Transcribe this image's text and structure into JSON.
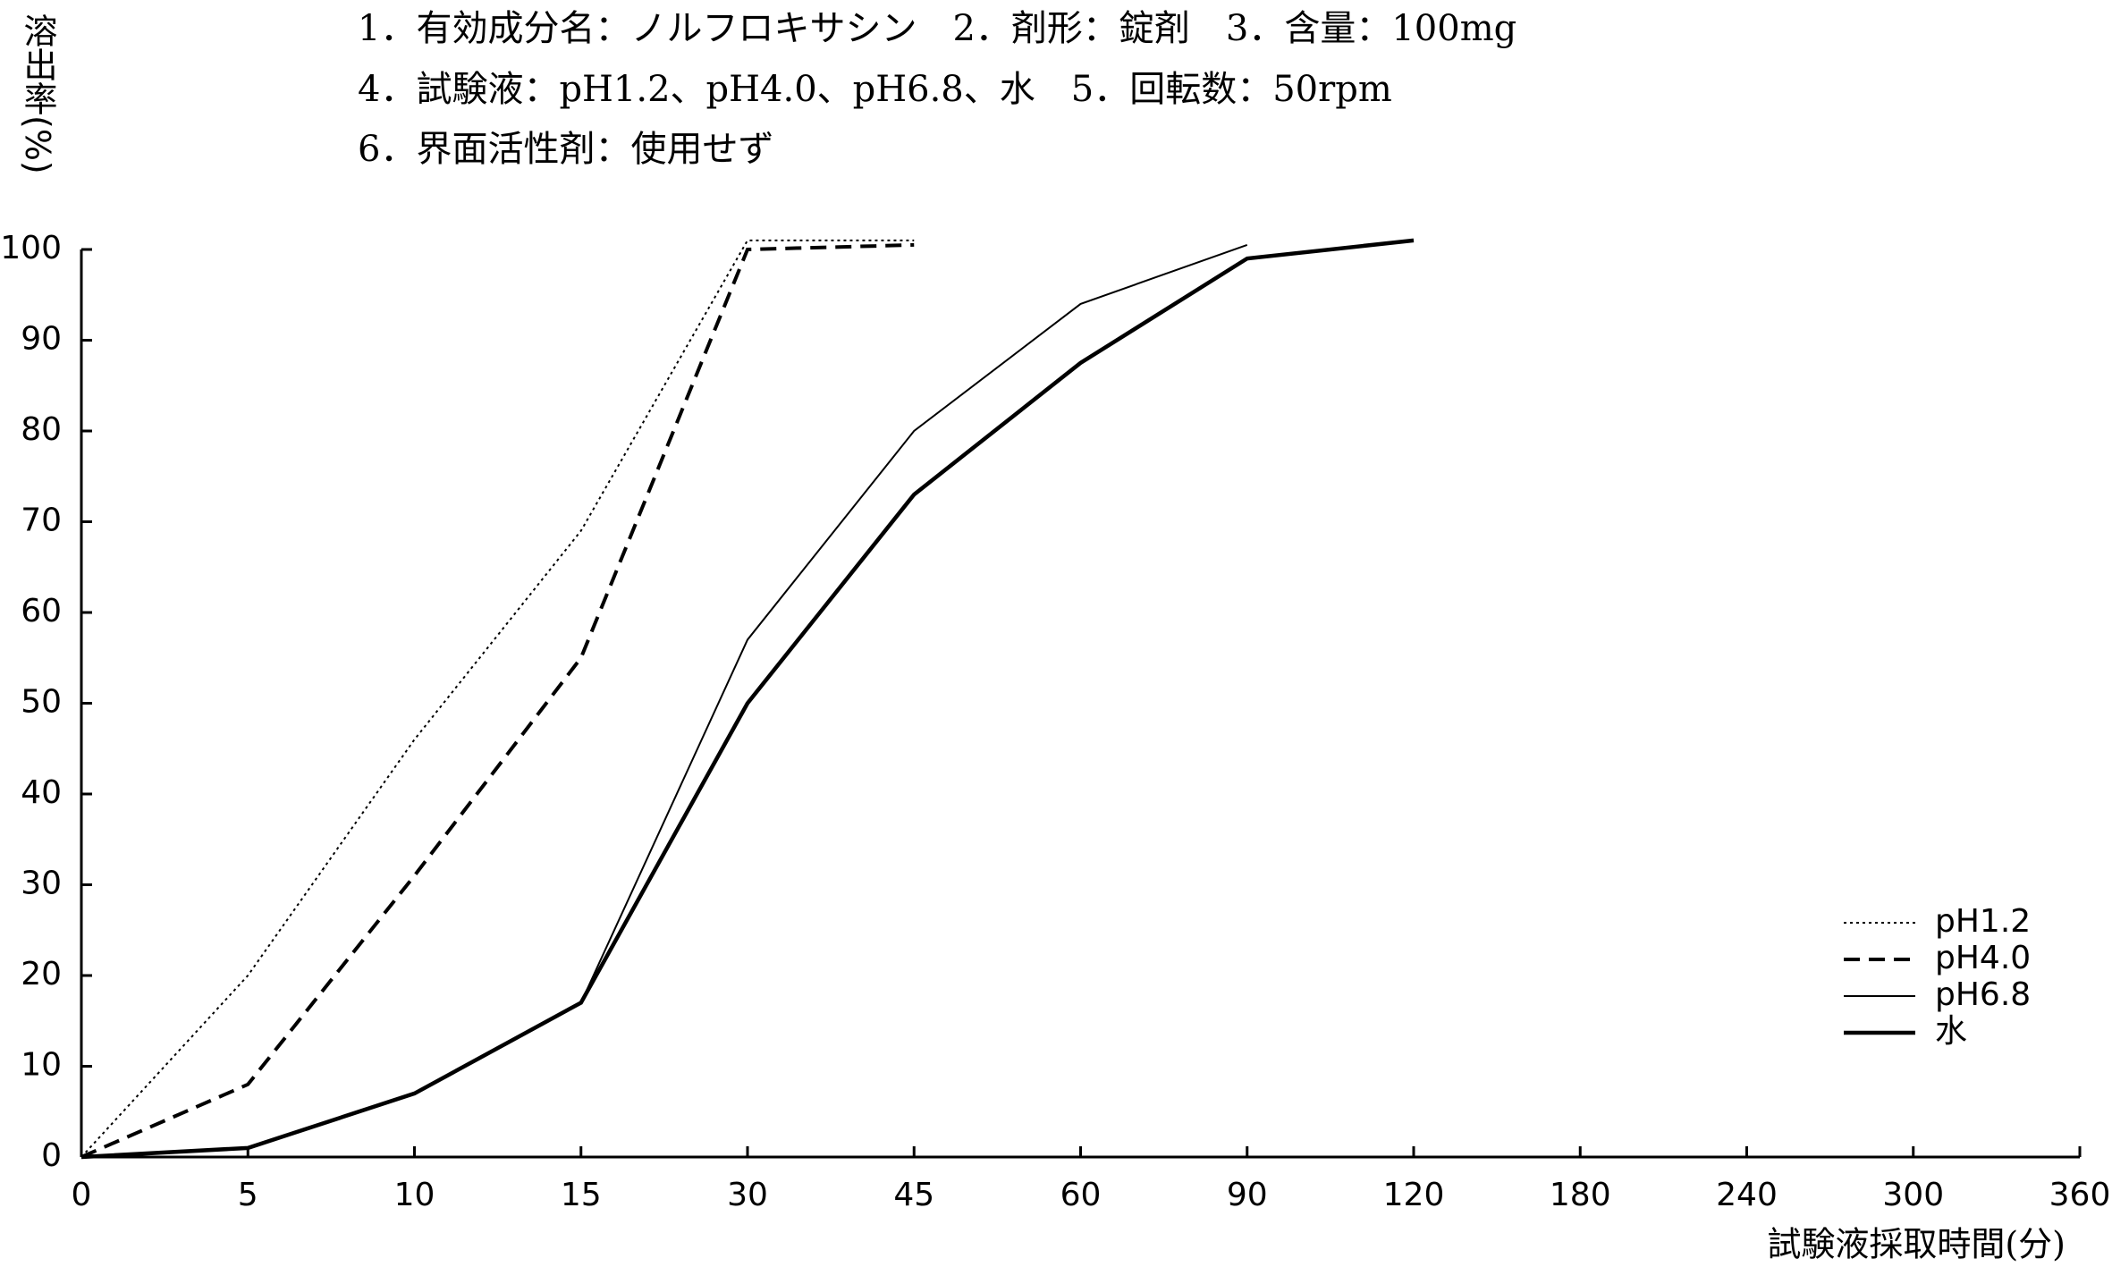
{
  "chart_data": {
    "type": "line",
    "header_lines": [
      "1．有効成分名：ノルフロキサシン　2．剤形：錠剤　3．含量：100mg",
      "4．試験液：pH1.2、pH4.0、pH6.8、水　5．回転数：50rpm",
      "6．界面活性剤：使用せず"
    ],
    "y_label": "溶出率(%)",
    "x_label": "試験液採取時間(分)",
    "categories": [
      "0",
      "5",
      "10",
      "15",
      "30",
      "45",
      "60",
      "90",
      "120",
      "180",
      "240",
      "300",
      "360"
    ],
    "series": [
      {
        "name": "pH1.2",
        "color": "#000000",
        "style": "dotted",
        "values": [
          0,
          20,
          46,
          69,
          101,
          101,
          null,
          null,
          null,
          null,
          null,
          null,
          null
        ]
      },
      {
        "name": "pH4.0",
        "color": "#000000",
        "style": "dashed",
        "values": [
          0,
          8,
          31,
          55,
          100,
          100.5,
          null,
          null,
          null,
          null,
          null,
          null,
          null
        ]
      },
      {
        "name": "pH6.8",
        "color": "#000000",
        "style": "thin",
        "values": [
          0,
          1,
          7,
          17,
          57,
          80,
          94,
          100.5,
          null,
          null,
          null,
          null,
          null
        ]
      },
      {
        "name": "水",
        "color": "#000000",
        "style": "thick",
        "values": [
          0,
          1,
          7,
          17,
          50,
          73,
          87.5,
          99,
          101,
          null,
          null,
          null,
          null
        ]
      }
    ],
    "ylim": [
      0,
      100
    ],
    "yticks": [
      0,
      10,
      20,
      30,
      40,
      50,
      60,
      70,
      80,
      90,
      100
    ],
    "legend": "lower right"
  }
}
